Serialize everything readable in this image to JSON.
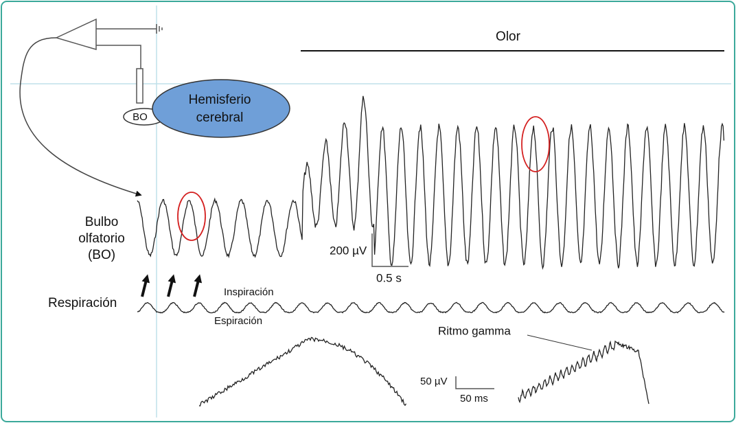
{
  "stimulus": {
    "label": "Olor"
  },
  "brain": {
    "hemisphere": [
      "Hemisferio",
      "cerebral"
    ],
    "bulb": "BO"
  },
  "traces": {
    "olfactory_bulb": [
      "Bulbo",
      "olfatorio",
      "(BO)"
    ],
    "respiration": "Respiración",
    "inspiration": "Inspiración",
    "expiration": "Espiración"
  },
  "scale_bars": [
    {
      "amplitude": "200 µV",
      "time": "0.5 s"
    },
    {
      "amplitude": "50 µV",
      "time": "50 ms"
    }
  ],
  "annotation": "Ritmo gamma"
}
